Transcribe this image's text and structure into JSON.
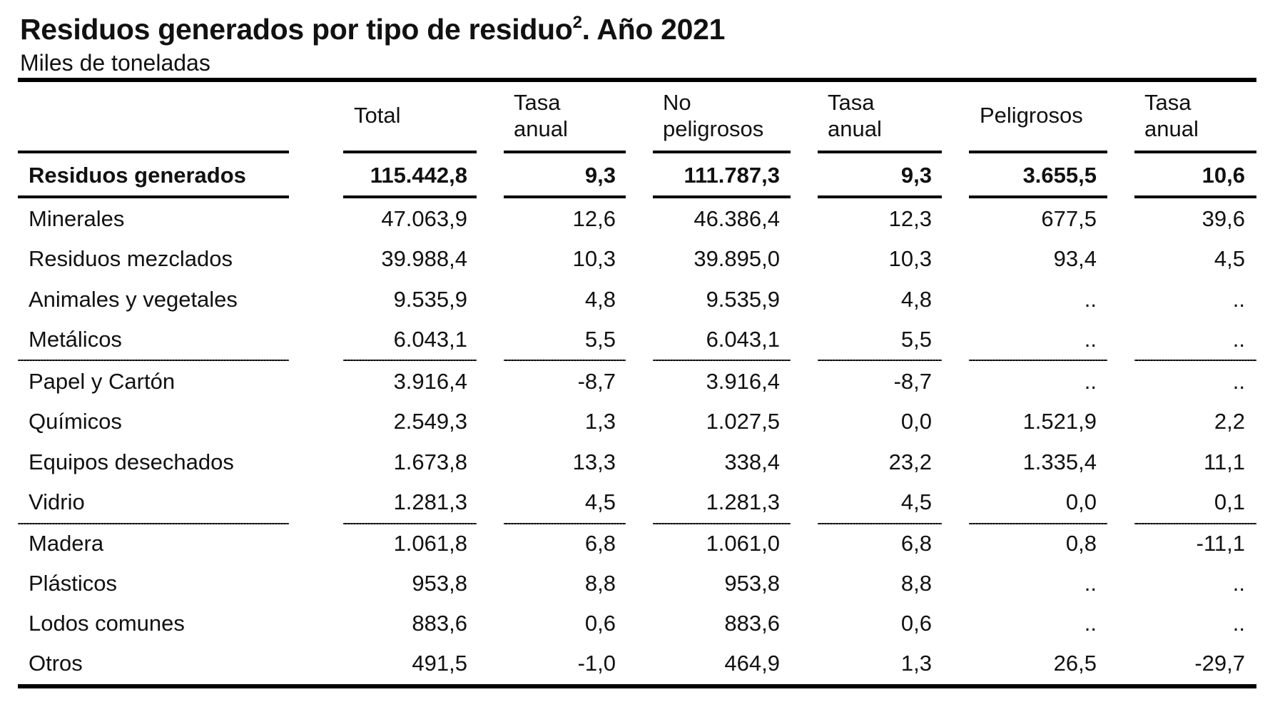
{
  "title": "Residuos generados por tipo de residuo",
  "title_sup": "2",
  "title_suffix": ". Año 2021",
  "subtitle": "Miles de toneladas",
  "headers": [
    {
      "line1": "Total",
      "line2": ""
    },
    {
      "line1": "Tasa",
      "line2": "anual"
    },
    {
      "line1": "No",
      "line2": "peligrosos"
    },
    {
      "line1": "Tasa",
      "line2": "anual"
    },
    {
      "line1": "Peligrosos",
      "line2": ""
    },
    {
      "line1": "Tasa",
      "line2": "anual"
    }
  ],
  "rows": [
    {
      "label": "Residuos generados",
      "values": [
        "115.442,8",
        "9,3",
        "111.787,3",
        "9,3",
        "3.655,5",
        "10,6"
      ]
    },
    {
      "label": "Minerales",
      "values": [
        "47.063,9",
        "12,6",
        "46.386,4",
        "12,3",
        "677,5",
        "39,6"
      ]
    },
    {
      "label": "Residuos mezclados",
      "values": [
        "39.988,4",
        "10,3",
        "39.895,0",
        "10,3",
        "93,4",
        "4,5"
      ]
    },
    {
      "label": "Animales y vegetales",
      "values": [
        "9.535,9",
        "4,8",
        "9.535,9",
        "4,8",
        "..",
        ".."
      ]
    },
    {
      "label": "Metálicos",
      "values": [
        "6.043,1",
        "5,5",
        "6.043,1",
        "5,5",
        "..",
        ".."
      ]
    },
    {
      "label": "Papel y Cartón",
      "values": [
        "3.916,4",
        "-8,7",
        "3.916,4",
        "-8,7",
        "..",
        ".."
      ]
    },
    {
      "label": "Químicos",
      "values": [
        "2.549,3",
        "1,3",
        "1.027,5",
        "0,0",
        "1.521,9",
        "2,2"
      ]
    },
    {
      "label": "Equipos desechados",
      "values": [
        "1.673,8",
        "13,3",
        "338,4",
        "23,2",
        "1.335,4",
        "11,1"
      ]
    },
    {
      "label": "Vidrio",
      "values": [
        "1.281,3",
        "4,5",
        "1.281,3",
        "4,5",
        "0,0",
        "0,1"
      ]
    },
    {
      "label": "Madera",
      "values": [
        "1.061,8",
        "6,8",
        "1.061,0",
        "6,8",
        "0,8",
        "-11,1"
      ]
    },
    {
      "label": "Plásticos",
      "values": [
        "953,8",
        "8,8",
        "953,8",
        "8,8",
        "..",
        ".."
      ]
    },
    {
      "label": "Lodos comunes",
      "values": [
        "883,6",
        "0,6",
        "883,6",
        "0,6",
        "..",
        ".."
      ]
    },
    {
      "label": "Otros",
      "values": [
        "491,5",
        "-1,0",
        "464,9",
        "1,3",
        "26,5",
        "-29,7"
      ]
    }
  ]
}
